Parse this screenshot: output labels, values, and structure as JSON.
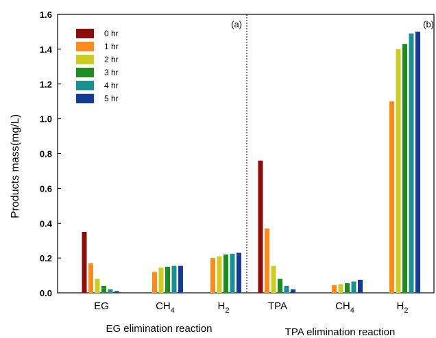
{
  "chart_data": {
    "type": "bar",
    "ylabel": "Products mass(mg/L)",
    "ylim": [
      0,
      1.6
    ],
    "yticks": [
      "0.0",
      "0.2",
      "0.4",
      "0.6",
      "0.8",
      "1.0",
      "1.2",
      "1.4",
      "1.6"
    ],
    "grid": false,
    "legend_position": "top-left",
    "series": [
      {
        "name": "0 hr",
        "color": "#8b0d0d"
      },
      {
        "name": "1 hr",
        "color": "#ff8c1a"
      },
      {
        "name": "2 hr",
        "color": "#cccc22"
      },
      {
        "name": "3 hr",
        "color": "#1f8c1f"
      },
      {
        "name": "4 hr",
        "color": "#1a9090"
      },
      {
        "name": "5 hr",
        "color": "#143c96"
      }
    ],
    "panels": [
      {
        "label": "(a)",
        "group_label": "EG elimination reaction",
        "categories": [
          {
            "main": "EG",
            "sub": "",
            "values": [
              0.35,
              0.17,
              0.08,
              0.04,
              0.02,
              0.01
            ]
          },
          {
            "main": "CH",
            "sub": "4",
            "values": [
              0.0,
              0.12,
              0.145,
              0.15,
              0.155,
              0.155
            ]
          },
          {
            "main": "H",
            "sub": "2",
            "values": [
              0.0,
              0.2,
              0.21,
              0.22,
              0.225,
              0.23
            ]
          }
        ]
      },
      {
        "label": "(b)",
        "group_label": "TPA elimination reaction",
        "categories": [
          {
            "main": "TPA",
            "sub": "",
            "values": [
              0.76,
              0.37,
              0.155,
              0.08,
              0.04,
              0.02
            ]
          },
          {
            "main": "CH",
            "sub": "4",
            "values": [
              0.0,
              0.045,
              0.05,
              0.055,
              0.065,
              0.075
            ]
          },
          {
            "main": "H",
            "sub": "2",
            "values": [
              0.0,
              1.1,
              1.4,
              1.43,
              1.49,
              1.5
            ]
          }
        ]
      }
    ]
  }
}
